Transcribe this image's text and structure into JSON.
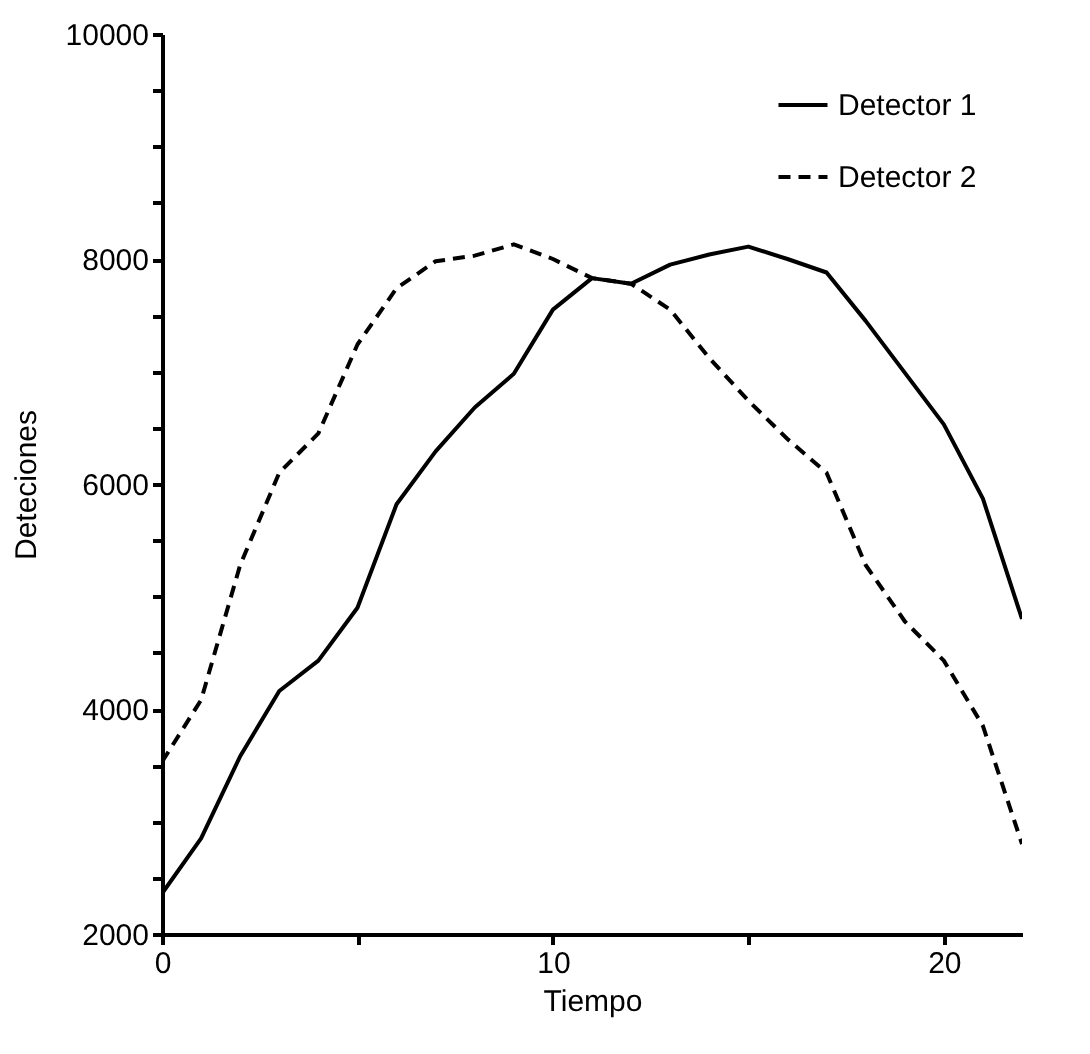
{
  "chart_data": {
    "type": "line",
    "xlabel": "Tiempo",
    "ylabel": "Deteciones",
    "x": [
      0,
      1,
      2,
      3,
      4,
      5,
      6,
      7,
      8,
      9,
      10,
      11,
      12,
      13,
      14,
      15,
      16,
      17,
      18,
      19,
      20,
      21,
      22
    ],
    "series": [
      {
        "name": "Detector 1",
        "color": "#000000",
        "line_style": "solid",
        "values": [
          2360,
          2850,
          3580,
          4160,
          4430,
          4900,
          5820,
          6290,
          6680,
          6980,
          7550,
          7830,
          7780,
          7950,
          8040,
          8110,
          8000,
          7880,
          7450,
          6990,
          6530,
          5870,
          4800
        ]
      },
      {
        "name": "Detector 2",
        "color": "#000000",
        "line_style": "dashed",
        "values": [
          3530,
          4080,
          5280,
          6100,
          6450,
          7240,
          7740,
          7980,
          8030,
          8130,
          8000,
          7830,
          7780,
          7550,
          7120,
          6740,
          6400,
          6100,
          5280,
          4780,
          4430,
          3850,
          2800
        ]
      }
    ],
    "xlim": [
      0,
      22
    ],
    "ylim": [
      2000,
      10000
    ],
    "xticks": [
      0,
      {
        "value": 5,
        "label": null
      },
      10,
      {
        "value": 15,
        "label": null
      },
      20
    ],
    "yticks": [
      2000,
      {
        "value": 2500,
        "label": null
      },
      {
        "value": 3000,
        "label": null
      },
      {
        "value": 3500,
        "label": null
      },
      4000,
      {
        "value": 4500,
        "label": null
      },
      {
        "value": 5000,
        "label": null
      },
      {
        "value": 5500,
        "label": null
      },
      6000,
      {
        "value": 6500,
        "label": null
      },
      {
        "value": 7000,
        "label": null
      },
      {
        "value": 7500,
        "label": null
      },
      8000,
      {
        "value": 8500,
        "label": null
      },
      {
        "value": 9000,
        "label": null
      },
      {
        "value": 9500,
        "label": null
      },
      10000
    ],
    "grid": false,
    "legend": "top right",
    "marker": "none"
  }
}
